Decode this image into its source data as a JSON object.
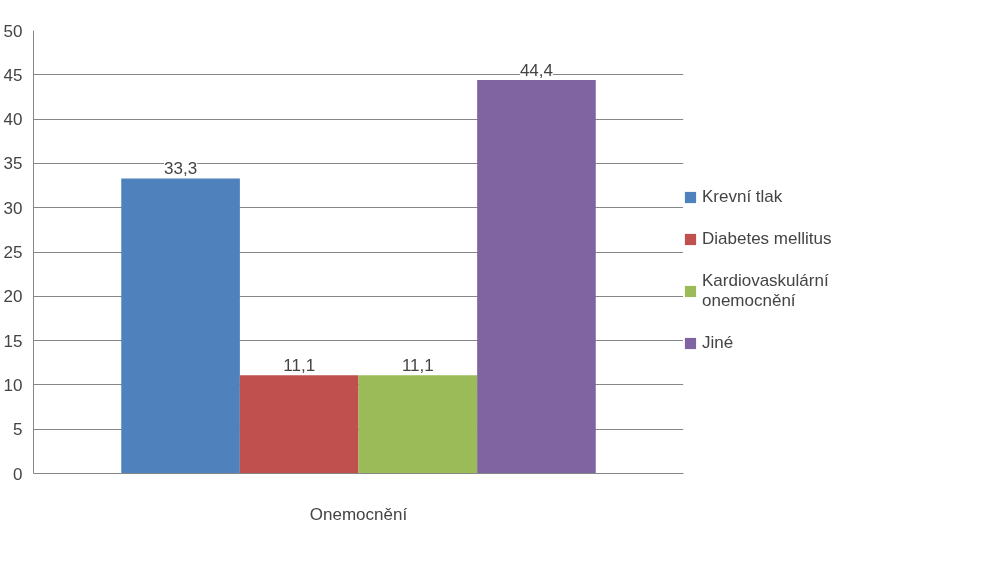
{
  "chart_data": {
    "type": "bar",
    "categories": [
      "Onemocnění"
    ],
    "series": [
      {
        "name": "Krevní tlak",
        "color": "#4f81bd",
        "values": [
          33.3
        ],
        "value_labels": [
          "33,3"
        ]
      },
      {
        "name": "Diabetes mellitus",
        "color": "#c0504d",
        "values": [
          11.1
        ],
        "value_labels": [
          "11,1"
        ]
      },
      {
        "name": "Kardiovaskulární onemocnění",
        "color": "#9bbb59",
        "values": [
          11.1
        ],
        "value_labels": [
          "11,1"
        ]
      },
      {
        "name": "Jiné",
        "color": "#8064a2",
        "values": [
          44.4
        ],
        "value_labels": [
          "44,4"
        ]
      }
    ],
    "ylim": [
      0,
      50
    ],
    "yticks": [
      0,
      5,
      10,
      15,
      20,
      25,
      30,
      35,
      40,
      45,
      50
    ],
    "grid": "y",
    "legend": "right"
  }
}
